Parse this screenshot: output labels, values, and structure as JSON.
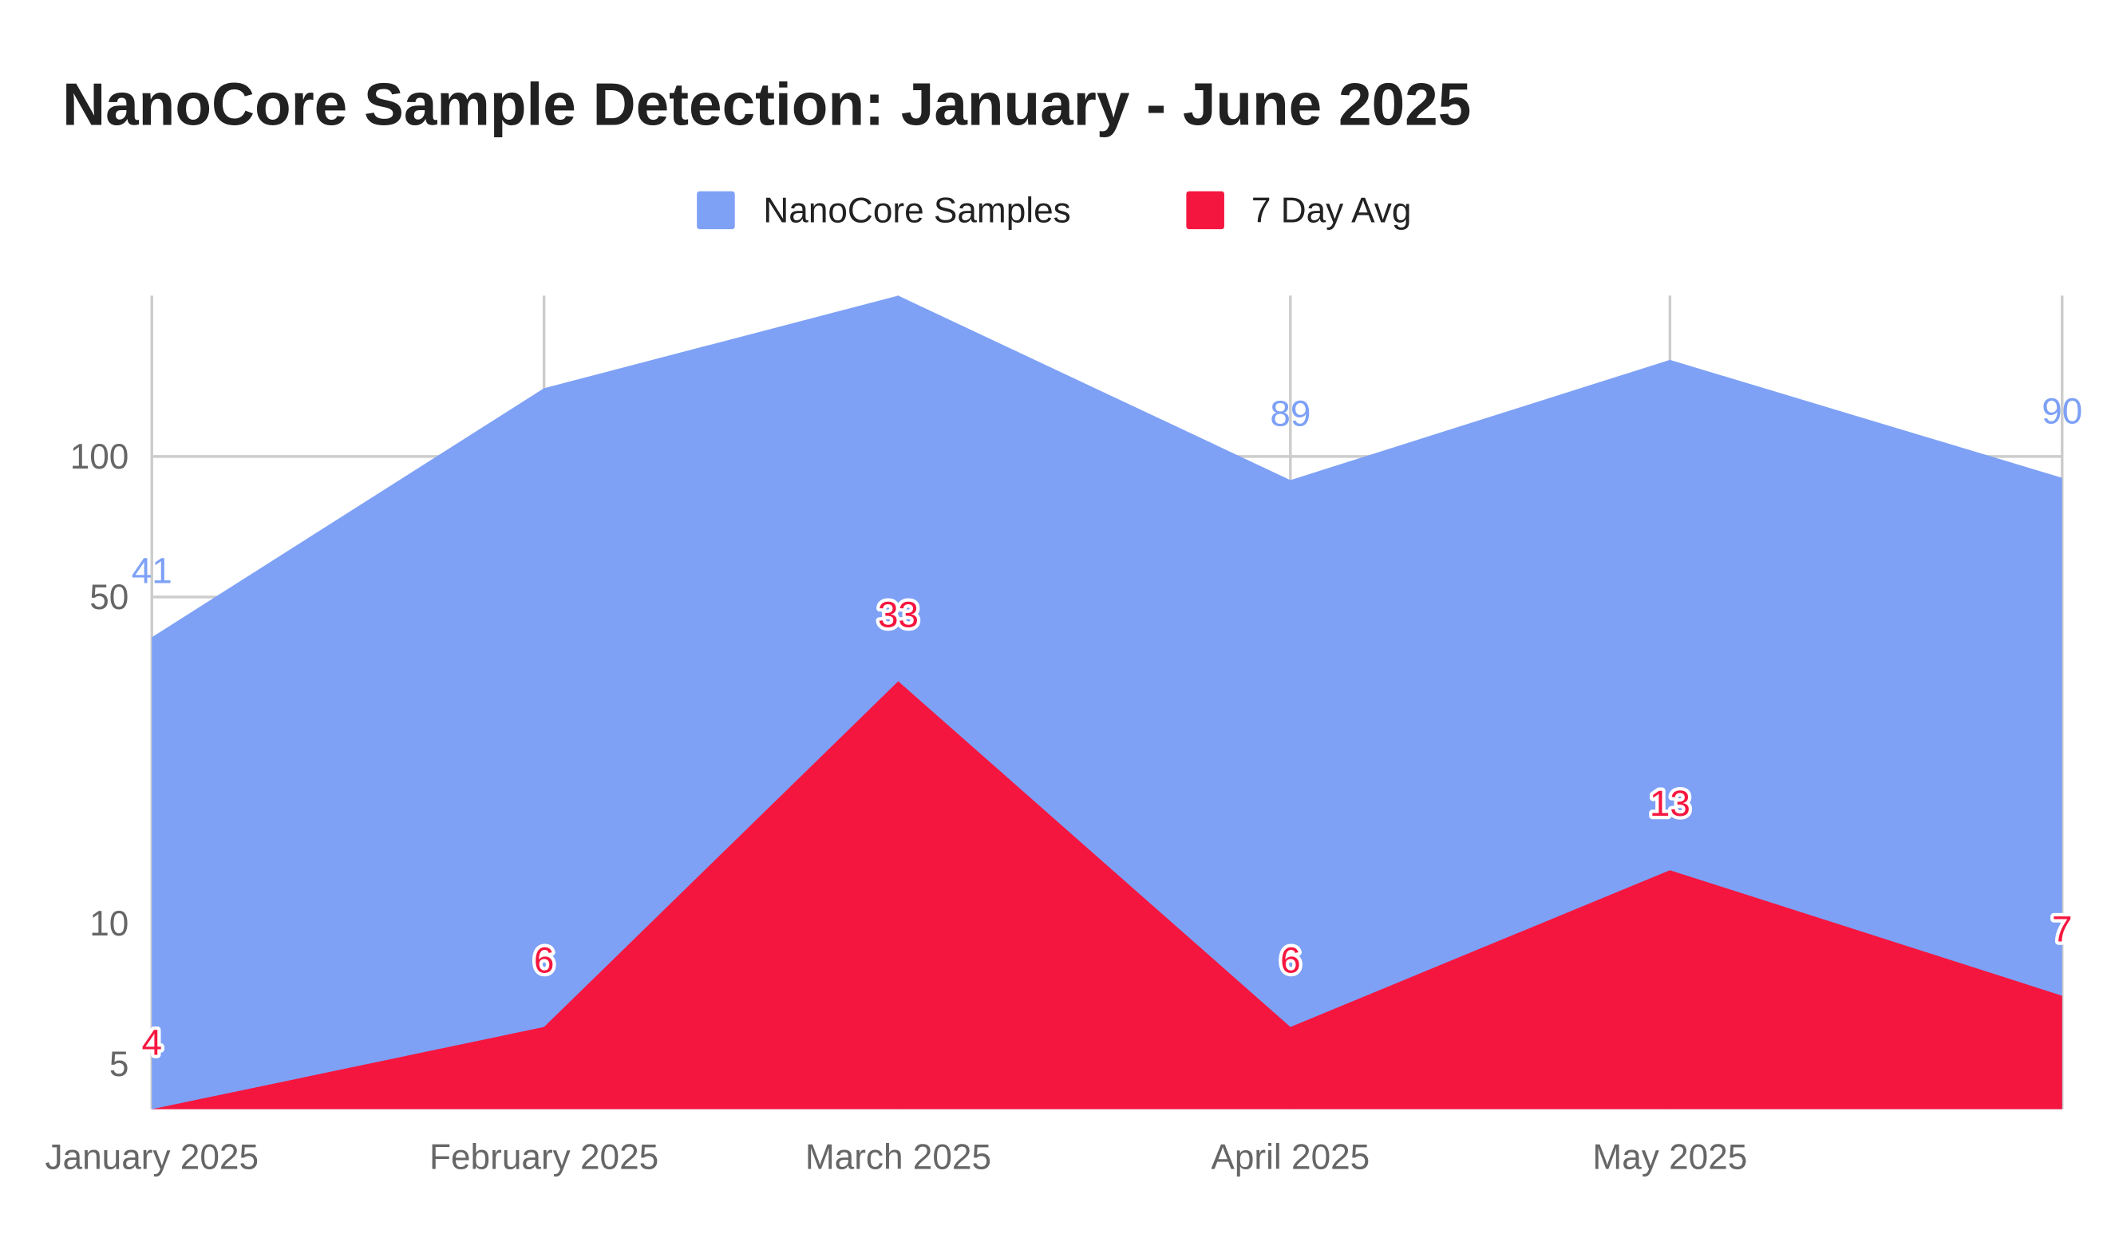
{
  "chart_data": {
    "type": "area",
    "title": "NanoCore Sample Detection: January - June 2025",
    "x": [
      "2025-01-01",
      "2025-02-01",
      "2025-03-01",
      "2025-04-01",
      "2025-05-01",
      "2025-06-01"
    ],
    "x_tick_labels": [
      "January 2025",
      "February 2025",
      "March 2025",
      "April 2025",
      "May 2025"
    ],
    "y_scale": "log",
    "y_ticks": [
      5,
      10,
      50,
      100
    ],
    "ylim": [
      4,
      221
    ],
    "grid": true,
    "legend_position": "top",
    "series": [
      {
        "name": "NanoCore Samples",
        "color": "#7ea1f6",
        "values": [
          41,
          140,
          221,
          89,
          161,
          90
        ],
        "shown_labels": [
          true,
          false,
          false,
          true,
          false,
          true
        ]
      },
      {
        "name": "7 Day Avg",
        "color": "#f5163f",
        "values": [
          4,
          6,
          33,
          6,
          13,
          7
        ],
        "shown_labels": [
          true,
          true,
          true,
          true,
          true,
          true
        ]
      }
    ]
  }
}
